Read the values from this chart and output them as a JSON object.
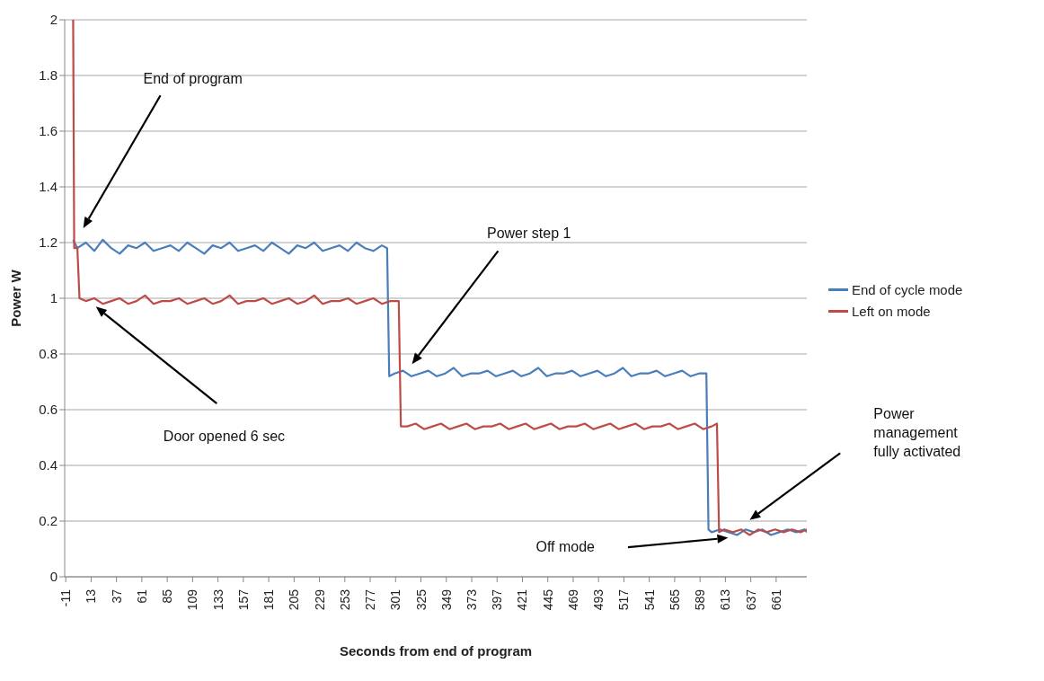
{
  "chart_data": {
    "type": "line",
    "xlabel": "Seconds from end of program",
    "ylabel": "Power W",
    "xlim": [
      -12,
      690
    ],
    "xticks": [
      -11,
      13,
      37,
      61,
      85,
      109,
      133,
      157,
      181,
      205,
      229,
      253,
      277,
      301,
      325,
      349,
      373,
      397,
      421,
      445,
      469,
      493,
      517,
      541,
      565,
      589,
      613,
      637,
      661
    ],
    "ylim": [
      0,
      2
    ],
    "yticks": [
      0,
      0.2,
      0.4,
      0.6,
      0.8,
      1,
      1.2,
      1.4,
      1.6,
      1.8,
      2
    ],
    "grid": "y",
    "legend": "right",
    "marker": "none",
    "line_style": "solid",
    "series": [
      {
        "name": "End of cycle mode",
        "color": "#4a7ebb",
        "x": [
          -4,
          0,
          8,
          16,
          24,
          32,
          40,
          48,
          56,
          64,
          72,
          80,
          88,
          96,
          104,
          112,
          120,
          128,
          136,
          144,
          152,
          160,
          168,
          176,
          184,
          192,
          200,
          208,
          216,
          224,
          232,
          240,
          248,
          256,
          264,
          272,
          280,
          288,
          293,
          295,
          300,
          308,
          316,
          324,
          332,
          340,
          348,
          356,
          364,
          372,
          380,
          388,
          396,
          404,
          412,
          420,
          428,
          436,
          444,
          452,
          460,
          468,
          476,
          484,
          492,
          500,
          508,
          516,
          524,
          532,
          540,
          548,
          556,
          564,
          572,
          580,
          588,
          595,
          597,
          600,
          608,
          616,
          624,
          632,
          640,
          648,
          656,
          664,
          672,
          680,
          688,
          690
        ],
        "values": [
          1.21,
          1.18,
          1.2,
          1.17,
          1.21,
          1.18,
          1.16,
          1.19,
          1.18,
          1.2,
          1.17,
          1.18,
          1.19,
          1.17,
          1.2,
          1.18,
          1.16,
          1.19,
          1.18,
          1.2,
          1.17,
          1.18,
          1.19,
          1.17,
          1.2,
          1.18,
          1.16,
          1.19,
          1.18,
          1.2,
          1.17,
          1.18,
          1.19,
          1.17,
          1.2,
          1.18,
          1.17,
          1.19,
          1.18,
          0.72,
          0.73,
          0.74,
          0.72,
          0.73,
          0.74,
          0.72,
          0.73,
          0.75,
          0.72,
          0.73,
          0.73,
          0.74,
          0.72,
          0.73,
          0.74,
          0.72,
          0.73,
          0.75,
          0.72,
          0.73,
          0.73,
          0.74,
          0.72,
          0.73,
          0.74,
          0.72,
          0.73,
          0.75,
          0.72,
          0.73,
          0.73,
          0.74,
          0.72,
          0.73,
          0.74,
          0.72,
          0.73,
          0.73,
          0.17,
          0.16,
          0.17,
          0.16,
          0.15,
          0.17,
          0.16,
          0.17,
          0.15,
          0.16,
          0.17,
          0.16,
          0.17,
          0.16
        ]
      },
      {
        "name": "Left on mode",
        "color": "#be4b48",
        "x": [
          -4,
          -3,
          0,
          2,
          8,
          16,
          24,
          32,
          40,
          48,
          56,
          64,
          72,
          80,
          88,
          96,
          104,
          112,
          120,
          128,
          136,
          144,
          152,
          160,
          168,
          176,
          184,
          192,
          200,
          208,
          216,
          224,
          232,
          240,
          248,
          256,
          264,
          272,
          280,
          288,
          296,
          304,
          306,
          312,
          320,
          328,
          336,
          344,
          352,
          360,
          368,
          376,
          384,
          392,
          400,
          408,
          416,
          424,
          432,
          440,
          448,
          456,
          464,
          472,
          480,
          488,
          496,
          504,
          512,
          520,
          528,
          536,
          544,
          552,
          560,
          568,
          576,
          584,
          592,
          600,
          605,
          607,
          612,
          620,
          628,
          636,
          644,
          652,
          660,
          668,
          676,
          684,
          690
        ],
        "values": [
          2,
          1.18,
          1.18,
          1,
          0.99,
          1,
          0.98,
          0.99,
          1,
          0.98,
          0.99,
          1.01,
          0.98,
          0.99,
          0.99,
          1,
          0.98,
          0.99,
          1,
          0.98,
          0.99,
          1.01,
          0.98,
          0.99,
          0.99,
          1,
          0.98,
          0.99,
          1,
          0.98,
          0.99,
          1.01,
          0.98,
          0.99,
          0.99,
          1,
          0.98,
          0.99,
          1,
          0.98,
          0.99,
          0.99,
          0.54,
          0.54,
          0.55,
          0.53,
          0.54,
          0.55,
          0.53,
          0.54,
          0.55,
          0.53,
          0.54,
          0.54,
          0.55,
          0.53,
          0.54,
          0.55,
          0.53,
          0.54,
          0.55,
          0.53,
          0.54,
          0.54,
          0.55,
          0.53,
          0.54,
          0.55,
          0.53,
          0.54,
          0.55,
          0.53,
          0.54,
          0.54,
          0.55,
          0.53,
          0.54,
          0.55,
          0.53,
          0.54,
          0.55,
          0.16,
          0.17,
          0.16,
          0.17,
          0.15,
          0.17,
          0.16,
          0.17,
          0.16,
          0.17,
          0.16,
          0.17
        ]
      }
    ],
    "annotations": [
      "End of program",
      "Door opened 6 sec",
      "Power step 1",
      "Off mode",
      "Power management fully activated"
    ]
  }
}
